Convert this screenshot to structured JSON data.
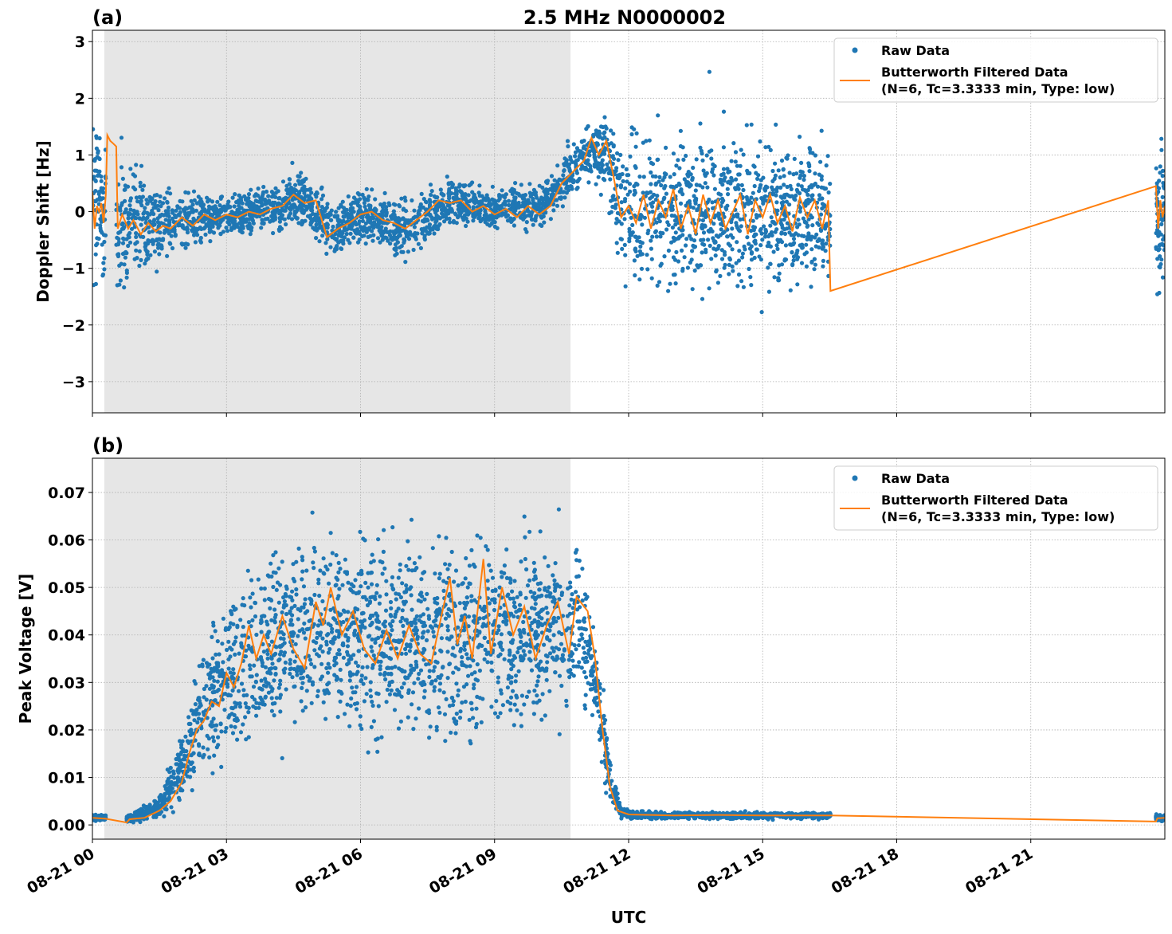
{
  "title": "2.5 MHz N0000002",
  "xlabel": "UTC",
  "xtick_labels": [
    "08-21 00",
    "08-21 03",
    "08-21 06",
    "08-21 09",
    "08-21 12",
    "08-21 15",
    "08-21 18",
    "08-21 21"
  ],
  "legend": {
    "raw": "Raw Data",
    "filtered_line1": "Butterworth Filtered Data",
    "filtered_line2": "(N=6, Tc=3.3333 min, Type: low)"
  },
  "colors": {
    "raw": "#1f77b4",
    "filtered": "#ff7f0e",
    "shade": "#e6e6e6",
    "grid": "#b0b0b0"
  },
  "chart_data": [
    {
      "type": "scatter",
      "panel_label": "(a)",
      "ylabel": "Doppler Shift [Hz]",
      "xlim": [
        "00:00",
        "24:00"
      ],
      "ylim": [
        -3.55,
        3.2
      ],
      "yticks": [
        3,
        2,
        1,
        0,
        -1,
        -2,
        -3
      ],
      "ytick_labels": [
        "3",
        "2",
        "1",
        "0",
        "−1",
        "−2",
        "−3"
      ],
      "grid": true,
      "legend_placement": "top-right",
      "shaded_interval": [
        "00:16",
        "10:42"
      ],
      "raw_segments": [
        [
          "00:00",
          "00:18"
        ],
        [
          "00:32",
          "16:31"
        ],
        [
          "23:48",
          "24:00"
        ]
      ],
      "raw_envelope": [
        [
          "00:00",
          -1.4,
          1.6
        ],
        [
          "00:18",
          -1.3,
          1.5
        ],
        [
          "00:32",
          -1.5,
          1.0
        ],
        [
          "01:00",
          -1.3,
          0.8
        ],
        [
          "01:30",
          -1.0,
          0.5
        ],
        [
          "02:00",
          -0.7,
          0.4
        ],
        [
          "03:00",
          -0.5,
          0.3
        ],
        [
          "04:00",
          -0.4,
          0.5
        ],
        [
          "04:40",
          -0.2,
          0.7
        ],
        [
          "05:20",
          -0.9,
          0.2
        ],
        [
          "06:00",
          -0.5,
          0.4
        ],
        [
          "07:00",
          -0.9,
          0.3
        ],
        [
          "08:00",
          -0.3,
          0.6
        ],
        [
          "09:00",
          -0.3,
          0.4
        ],
        [
          "10:00",
          -0.3,
          0.5
        ],
        [
          "10:40",
          0.2,
          1.1
        ],
        [
          "11:10",
          0.6,
          1.6
        ],
        [
          "11:30",
          0.2,
          1.7
        ],
        [
          "11:50",
          -1.2,
          1.3
        ],
        [
          "12:30",
          -1.4,
          1.5
        ],
        [
          "14:00",
          -1.5,
          1.5
        ],
        [
          "16:31",
          -1.5,
          1.4
        ],
        [
          "23:48",
          -1.5,
          1.3
        ],
        [
          "24:00",
          -1.5,
          1.3
        ]
      ],
      "filtered": [
        [
          "00:00",
          0.35
        ],
        [
          "00:03",
          -0.3
        ],
        [
          "00:06",
          0.1
        ],
        [
          "00:09",
          0.0
        ],
        [
          "00:12",
          0.15
        ],
        [
          "00:15",
          -0.2
        ],
        [
          "00:18",
          0.3
        ],
        [
          "00:20",
          1.35
        ],
        [
          "00:24",
          1.25
        ],
        [
          "00:28",
          1.2
        ],
        [
          "00:32",
          1.15
        ],
        [
          "00:34",
          -0.3
        ],
        [
          "00:40",
          -0.05
        ],
        [
          "00:48",
          -0.3
        ],
        [
          "00:55",
          -0.15
        ],
        [
          "01:05",
          -0.4
        ],
        [
          "01:15",
          -0.2
        ],
        [
          "01:25",
          -0.35
        ],
        [
          "01:35",
          -0.25
        ],
        [
          "01:45",
          -0.3
        ],
        [
          "02:00",
          -0.1
        ],
        [
          "02:15",
          -0.25
        ],
        [
          "02:30",
          -0.05
        ],
        [
          "02:45",
          -0.15
        ],
        [
          "03:00",
          -0.05
        ],
        [
          "03:15",
          -0.1
        ],
        [
          "03:30",
          0.0
        ],
        [
          "03:45",
          -0.05
        ],
        [
          "04:00",
          0.05
        ],
        [
          "04:15",
          0.1
        ],
        [
          "04:30",
          0.3
        ],
        [
          "04:45",
          0.15
        ],
        [
          "05:00",
          0.2
        ],
        [
          "05:15",
          -0.45
        ],
        [
          "05:30",
          -0.3
        ],
        [
          "05:45",
          -0.2
        ],
        [
          "06:00",
          -0.05
        ],
        [
          "06:15",
          0.0
        ],
        [
          "06:30",
          -0.15
        ],
        [
          "06:45",
          -0.2
        ],
        [
          "07:00",
          -0.3
        ],
        [
          "07:15",
          -0.15
        ],
        [
          "07:30",
          0.0
        ],
        [
          "07:45",
          0.2
        ],
        [
          "08:00",
          0.15
        ],
        [
          "08:15",
          0.2
        ],
        [
          "08:30",
          0.0
        ],
        [
          "08:45",
          0.1
        ],
        [
          "09:00",
          -0.05
        ],
        [
          "09:15",
          0.05
        ],
        [
          "09:30",
          -0.1
        ],
        [
          "09:45",
          0.1
        ],
        [
          "10:00",
          -0.05
        ],
        [
          "10:15",
          0.1
        ],
        [
          "10:30",
          0.5
        ],
        [
          "10:45",
          0.7
        ],
        [
          "11:00",
          0.9
        ],
        [
          "11:10",
          1.3
        ],
        [
          "11:20",
          1.0
        ],
        [
          "11:30",
          1.25
        ],
        [
          "11:40",
          0.6
        ],
        [
          "11:50",
          -0.1
        ],
        [
          "12:00",
          0.1
        ],
        [
          "12:10",
          -0.2
        ],
        [
          "12:20",
          0.3
        ],
        [
          "12:30",
          -0.3
        ],
        [
          "12:40",
          0.2
        ],
        [
          "12:50",
          -0.1
        ],
        [
          "13:00",
          0.4
        ],
        [
          "13:10",
          -0.3
        ],
        [
          "13:20",
          0.1
        ],
        [
          "13:30",
          -0.4
        ],
        [
          "13:40",
          0.3
        ],
        [
          "13:50",
          -0.2
        ],
        [
          "14:00",
          0.2
        ],
        [
          "14:10",
          -0.3
        ],
        [
          "14:20",
          0.0
        ],
        [
          "14:30",
          0.3
        ],
        [
          "14:40",
          -0.4
        ],
        [
          "14:50",
          0.2
        ],
        [
          "15:00",
          -0.1
        ],
        [
          "15:10",
          0.3
        ],
        [
          "15:20",
          -0.2
        ],
        [
          "15:30",
          0.1
        ],
        [
          "15:40",
          -0.35
        ],
        [
          "15:50",
          0.25
        ],
        [
          "16:00",
          -0.1
        ],
        [
          "16:10",
          0.2
        ],
        [
          "16:20",
          -0.3
        ],
        [
          "16:28",
          0.2
        ],
        [
          "16:31",
          -1.4
        ],
        [
          "23:48",
          0.45
        ],
        [
          "23:51",
          -0.3
        ],
        [
          "23:54",
          0.2
        ],
        [
          "23:57",
          -0.1
        ],
        [
          "24:00",
          0.1
        ]
      ]
    },
    {
      "type": "scatter",
      "panel_label": "(b)",
      "ylabel": "Peak Voltage [V]",
      "xlim": [
        "00:00",
        "24:00"
      ],
      "ylim": [
        -0.003,
        0.0772
      ],
      "yticks": [
        0,
        0.01,
        0.02,
        0.03,
        0.04,
        0.05,
        0.06,
        0.07
      ],
      "ytick_labels": [
        "0.00",
        "0.01",
        "0.02",
        "0.03",
        "0.04",
        "0.05",
        "0.06",
        "0.07"
      ],
      "grid": true,
      "legend_placement": "top-right",
      "shaded_interval": [
        "00:16",
        "10:42"
      ],
      "raw_segments": [
        [
          "00:00",
          "00:18"
        ],
        [
          "00:46",
          "16:31"
        ],
        [
          "23:48",
          "24:00"
        ]
      ],
      "raw_envelope": [
        [
          "00:00",
          0.0008,
          0.0022
        ],
        [
          "00:18",
          0.0008,
          0.0022
        ],
        [
          "00:46",
          0.0005,
          0.002
        ],
        [
          "01:30",
          0.001,
          0.006
        ],
        [
          "02:00",
          0.004,
          0.02
        ],
        [
          "02:30",
          0.01,
          0.04
        ],
        [
          "03:00",
          0.012,
          0.05
        ],
        [
          "04:00",
          0.018,
          0.058
        ],
        [
          "05:00",
          0.02,
          0.062
        ],
        [
          "07:00",
          0.018,
          0.062
        ],
        [
          "09:00",
          0.018,
          0.063
        ],
        [
          "10:40",
          0.022,
          0.06
        ],
        [
          "11:00",
          0.025,
          0.055
        ],
        [
          "11:20",
          0.015,
          0.04
        ],
        [
          "11:35",
          0.004,
          0.015
        ],
        [
          "11:50",
          0.0012,
          0.004
        ],
        [
          "12:10",
          0.0012,
          0.0028
        ],
        [
          "16:31",
          0.0012,
          0.0027
        ],
        [
          "23:48",
          0.0008,
          0.0022
        ],
        [
          "24:00",
          0.0008,
          0.0022
        ]
      ],
      "filtered": [
        [
          "00:00",
          0.0015
        ],
        [
          "00:18",
          0.0013
        ],
        [
          "00:46",
          0.0005
        ],
        [
          "00:50",
          0.0012
        ],
        [
          "01:10",
          0.0015
        ],
        [
          "01:30",
          0.003
        ],
        [
          "01:45",
          0.005
        ],
        [
          "02:00",
          0.009
        ],
        [
          "02:10",
          0.015
        ],
        [
          "02:20",
          0.02
        ],
        [
          "02:30",
          0.022
        ],
        [
          "02:40",
          0.026
        ],
        [
          "02:50",
          0.025
        ],
        [
          "03:00",
          0.032
        ],
        [
          "03:10",
          0.029
        ],
        [
          "03:20",
          0.034
        ],
        [
          "03:30",
          0.042
        ],
        [
          "03:40",
          0.035
        ],
        [
          "03:50",
          0.04
        ],
        [
          "04:00",
          0.036
        ],
        [
          "04:15",
          0.044
        ],
        [
          "04:30",
          0.037
        ],
        [
          "04:45",
          0.033
        ],
        [
          "05:00",
          0.047
        ],
        [
          "05:10",
          0.042
        ],
        [
          "05:20",
          0.05
        ],
        [
          "05:35",
          0.04
        ],
        [
          "05:50",
          0.045
        ],
        [
          "06:05",
          0.037
        ],
        [
          "06:20",
          0.034
        ],
        [
          "06:35",
          0.041
        ],
        [
          "06:50",
          0.035
        ],
        [
          "07:05",
          0.042
        ],
        [
          "07:20",
          0.036
        ],
        [
          "07:35",
          0.034
        ],
        [
          "07:50",
          0.045
        ],
        [
          "08:00",
          0.052
        ],
        [
          "08:10",
          0.038
        ],
        [
          "08:20",
          0.044
        ],
        [
          "08:30",
          0.035
        ],
        [
          "08:45",
          0.056
        ],
        [
          "08:55",
          0.036
        ],
        [
          "09:10",
          0.05
        ],
        [
          "09:25",
          0.04
        ],
        [
          "09:40",
          0.046
        ],
        [
          "09:55",
          0.035
        ],
        [
          "10:10",
          0.042
        ],
        [
          "10:25",
          0.047
        ],
        [
          "10:40",
          0.036
        ],
        [
          "10:50",
          0.048
        ],
        [
          "11:05",
          0.045
        ],
        [
          "11:15",
          0.035
        ],
        [
          "11:25",
          0.02
        ],
        [
          "11:35",
          0.008
        ],
        [
          "11:45",
          0.003
        ],
        [
          "12:00",
          0.0022
        ],
        [
          "13:00",
          0.002
        ],
        [
          "14:00",
          0.0021
        ],
        [
          "15:00",
          0.002
        ],
        [
          "16:31",
          0.002
        ],
        [
          "23:48",
          0.0007
        ],
        [
          "23:50",
          0.0014
        ],
        [
          "24:00",
          0.0015
        ]
      ]
    }
  ]
}
